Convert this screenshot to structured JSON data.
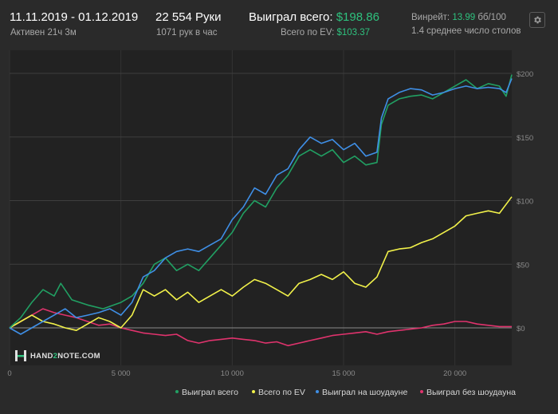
{
  "header": {
    "date_range": "11.11.2019 - 01.12.2019",
    "active_time": "Активен 21ч 3м",
    "hands": "22 554 Руки",
    "hands_per_hour": "1071 рук в час",
    "won_total_label": "Выиграл всего:",
    "won_total_value": "$198.86",
    "ev_total_label": "Всего по EV:",
    "ev_total_value": "$103.37",
    "winrate_label": "Винрейт:",
    "winrate_value": "13.99",
    "winrate_unit": "бб/100",
    "avg_tables": "1.4 среднее число столов"
  },
  "logo": {
    "part1": "HAND",
    "part2": "2",
    "part3": "NOTE.COM"
  },
  "colors": {
    "green": "#21a063",
    "yellow": "#f2f24a",
    "blue": "#3f8fe6",
    "red": "#e0336d",
    "background": "#2a2a2a",
    "header_green": "#2ec27e"
  },
  "legend": [
    {
      "label": "Выиграл всего",
      "color": "#21a063"
    },
    {
      "label": "Всего по EV",
      "color": "#f2f24a"
    },
    {
      "label": "Выиграл на шоудауне",
      "color": "#3f8fe6"
    },
    {
      "label": "Выиграл без шоудауна",
      "color": "#e0336d"
    }
  ],
  "chart_data": {
    "type": "line",
    "title": "",
    "xlabel": "",
    "ylabel": "",
    "xlim": [
      0,
      22554
    ],
    "ylim": [
      -20,
      205
    ],
    "x_ticks": [
      0,
      5000,
      10000,
      15000,
      20000
    ],
    "x_tick_labels": [
      "0",
      "5 000",
      "10 000",
      "15 000",
      "20 000"
    ],
    "y_ticks": [
      0,
      50,
      100,
      150,
      200
    ],
    "y_tick_labels": [
      "$0",
      "$50",
      "$100",
      "$150",
      "$200"
    ],
    "grid": true,
    "legend_position": "bottom-right",
    "series": [
      {
        "name": "Выиграл всего",
        "color": "#21a063",
        "points": [
          [
            0,
            0
          ],
          [
            500,
            8
          ],
          [
            1000,
            20
          ],
          [
            1500,
            30
          ],
          [
            2000,
            25
          ],
          [
            2300,
            35
          ],
          [
            2800,
            22
          ],
          [
            3500,
            18
          ],
          [
            4200,
            15
          ],
          [
            5000,
            20
          ],
          [
            5500,
            25
          ],
          [
            6000,
            35
          ],
          [
            6500,
            50
          ],
          [
            7000,
            55
          ],
          [
            7500,
            45
          ],
          [
            8000,
            50
          ],
          [
            8500,
            45
          ],
          [
            9000,
            55
          ],
          [
            9500,
            65
          ],
          [
            10000,
            75
          ],
          [
            10500,
            90
          ],
          [
            11000,
            100
          ],
          [
            11500,
            95
          ],
          [
            12000,
            110
          ],
          [
            12500,
            120
          ],
          [
            13000,
            135
          ],
          [
            13500,
            140
          ],
          [
            14000,
            135
          ],
          [
            14500,
            140
          ],
          [
            15000,
            130
          ],
          [
            15500,
            135
          ],
          [
            16000,
            128
          ],
          [
            16500,
            130
          ],
          [
            16700,
            160
          ],
          [
            17000,
            175
          ],
          [
            17500,
            180
          ],
          [
            18000,
            182
          ],
          [
            18500,
            183
          ],
          [
            19000,
            180
          ],
          [
            19500,
            185
          ],
          [
            20000,
            190
          ],
          [
            20500,
            195
          ],
          [
            21000,
            188
          ],
          [
            21500,
            192
          ],
          [
            22000,
            190
          ],
          [
            22300,
            182
          ],
          [
            22554,
            199
          ]
        ]
      },
      {
        "name": "Всего по EV",
        "color": "#f2f24a",
        "points": [
          [
            0,
            0
          ],
          [
            500,
            5
          ],
          [
            1000,
            10
          ],
          [
            1500,
            5
          ],
          [
            2000,
            3
          ],
          [
            2500,
            0
          ],
          [
            3000,
            -2
          ],
          [
            3500,
            3
          ],
          [
            4000,
            8
          ],
          [
            4500,
            5
          ],
          [
            5000,
            0
          ],
          [
            5500,
            10
          ],
          [
            6000,
            30
          ],
          [
            6500,
            25
          ],
          [
            7000,
            30
          ],
          [
            7500,
            22
          ],
          [
            8000,
            28
          ],
          [
            8500,
            20
          ],
          [
            9000,
            25
          ],
          [
            9500,
            30
          ],
          [
            10000,
            25
          ],
          [
            10500,
            32
          ],
          [
            11000,
            38
          ],
          [
            11500,
            35
          ],
          [
            12000,
            30
          ],
          [
            12500,
            25
          ],
          [
            13000,
            35
          ],
          [
            13500,
            38
          ],
          [
            14000,
            42
          ],
          [
            14500,
            38
          ],
          [
            15000,
            44
          ],
          [
            15500,
            35
          ],
          [
            16000,
            32
          ],
          [
            16500,
            40
          ],
          [
            17000,
            60
          ],
          [
            17500,
            62
          ],
          [
            18000,
            63
          ],
          [
            18500,
            67
          ],
          [
            19000,
            70
          ],
          [
            19500,
            75
          ],
          [
            20000,
            80
          ],
          [
            20500,
            88
          ],
          [
            21000,
            90
          ],
          [
            21500,
            92
          ],
          [
            22000,
            90
          ],
          [
            22554,
            103
          ]
        ]
      },
      {
        "name": "Выиграл на шоудауне",
        "color": "#3f8fe6",
        "points": [
          [
            0,
            0
          ],
          [
            500,
            -5
          ],
          [
            1000,
            0
          ],
          [
            1500,
            5
          ],
          [
            2000,
            10
          ],
          [
            2500,
            15
          ],
          [
            3000,
            8
          ],
          [
            3500,
            10
          ],
          [
            4000,
            12
          ],
          [
            4500,
            15
          ],
          [
            5000,
            10
          ],
          [
            5500,
            20
          ],
          [
            6000,
            40
          ],
          [
            6500,
            45
          ],
          [
            7000,
            55
          ],
          [
            7500,
            60
          ],
          [
            8000,
            62
          ],
          [
            8500,
            60
          ],
          [
            9000,
            65
          ],
          [
            9500,
            70
          ],
          [
            10000,
            85
          ],
          [
            10500,
            95
          ],
          [
            11000,
            110
          ],
          [
            11500,
            105
          ],
          [
            12000,
            120
          ],
          [
            12500,
            125
          ],
          [
            13000,
            140
          ],
          [
            13500,
            150
          ],
          [
            14000,
            145
          ],
          [
            14500,
            148
          ],
          [
            15000,
            140
          ],
          [
            15500,
            145
          ],
          [
            16000,
            135
          ],
          [
            16500,
            138
          ],
          [
            16700,
            165
          ],
          [
            17000,
            180
          ],
          [
            17500,
            185
          ],
          [
            18000,
            188
          ],
          [
            18500,
            187
          ],
          [
            19000,
            183
          ],
          [
            19500,
            185
          ],
          [
            20000,
            188
          ],
          [
            20500,
            190
          ],
          [
            21000,
            188
          ],
          [
            21500,
            189
          ],
          [
            22000,
            188
          ],
          [
            22300,
            185
          ],
          [
            22554,
            196
          ]
        ]
      },
      {
        "name": "Выиграл без шоудауна",
        "color": "#e0336d",
        "points": [
          [
            0,
            0
          ],
          [
            500,
            5
          ],
          [
            1000,
            10
          ],
          [
            1500,
            15
          ],
          [
            2000,
            12
          ],
          [
            2500,
            10
          ],
          [
            3000,
            8
          ],
          [
            3500,
            5
          ],
          [
            4000,
            2
          ],
          [
            4500,
            3
          ],
          [
            5000,
            0
          ],
          [
            5500,
            -2
          ],
          [
            6000,
            -4
          ],
          [
            6500,
            -5
          ],
          [
            7000,
            -6
          ],
          [
            7500,
            -5
          ],
          [
            8000,
            -10
          ],
          [
            8500,
            -12
          ],
          [
            9000,
            -10
          ],
          [
            9500,
            -9
          ],
          [
            10000,
            -8
          ],
          [
            10500,
            -9
          ],
          [
            11000,
            -10
          ],
          [
            11500,
            -12
          ],
          [
            12000,
            -11
          ],
          [
            12500,
            -14
          ],
          [
            13000,
            -12
          ],
          [
            13500,
            -10
          ],
          [
            14000,
            -8
          ],
          [
            14500,
            -6
          ],
          [
            15000,
            -5
          ],
          [
            15500,
            -4
          ],
          [
            16000,
            -3
          ],
          [
            16500,
            -5
          ],
          [
            17000,
            -3
          ],
          [
            17500,
            -2
          ],
          [
            18000,
            -1
          ],
          [
            18500,
            0
          ],
          [
            19000,
            2
          ],
          [
            19500,
            3
          ],
          [
            20000,
            5
          ],
          [
            20500,
            5
          ],
          [
            21000,
            3
          ],
          [
            21500,
            2
          ],
          [
            22000,
            1
          ],
          [
            22554,
            1
          ]
        ]
      }
    ]
  }
}
